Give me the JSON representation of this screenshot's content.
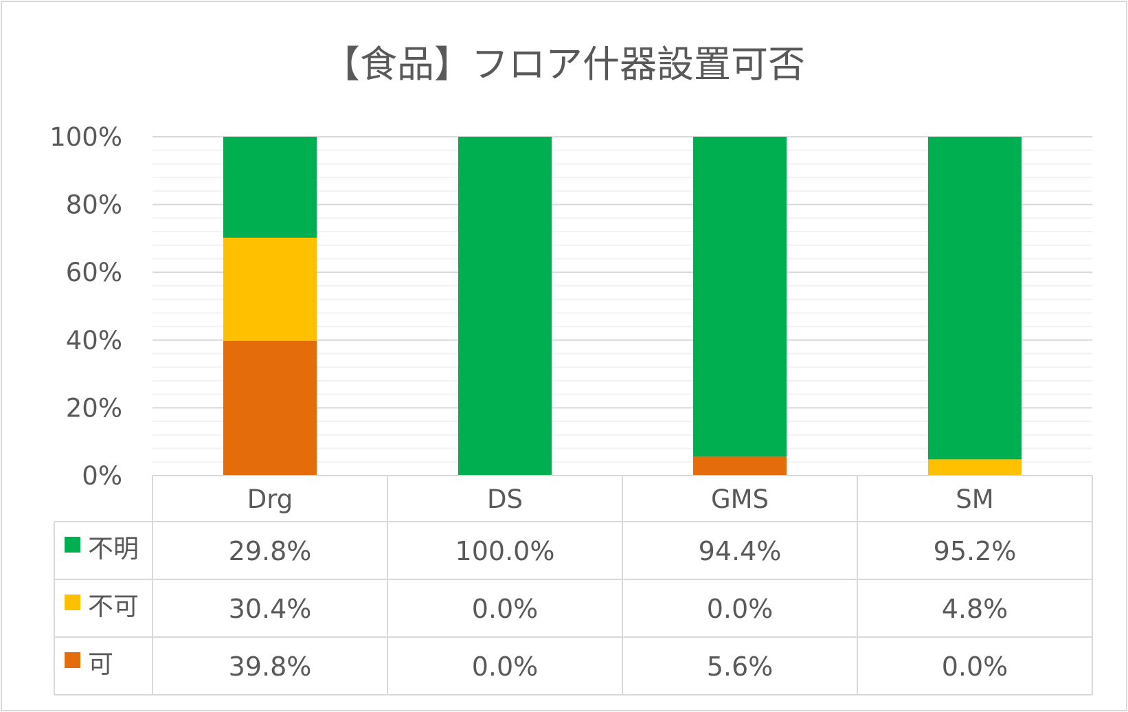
{
  "chart_data": {
    "type": "bar",
    "stacked": true,
    "percent_stacked": true,
    "title": "【食品】フロア什器設置可否",
    "categories": [
      "Drg",
      "DS",
      "GMS",
      "SM"
    ],
    "series": [
      {
        "name": "可",
        "color": "#E46C0A",
        "values": [
          39.8,
          0.0,
          5.6,
          0.0
        ],
        "labels": [
          "39.8%",
          "0.0%",
          "5.6%",
          "0.0%"
        ]
      },
      {
        "name": "不可",
        "color": "#FFC000",
        "values": [
          30.4,
          0.0,
          0.0,
          4.8
        ],
        "labels": [
          "30.4%",
          "0.0%",
          "0.0%",
          "4.8%"
        ]
      },
      {
        "name": "不明",
        "color": "#00B050",
        "values": [
          29.8,
          100.0,
          94.4,
          95.2
        ],
        "labels": [
          "29.8%",
          "100.0%",
          "94.4%",
          "95.2%"
        ]
      }
    ],
    "ylim": [
      0,
      100
    ],
    "yticks": [
      "0%",
      "20%",
      "40%",
      "60%",
      "80%",
      "100%"
    ],
    "grid": true,
    "legend": "data-table"
  }
}
